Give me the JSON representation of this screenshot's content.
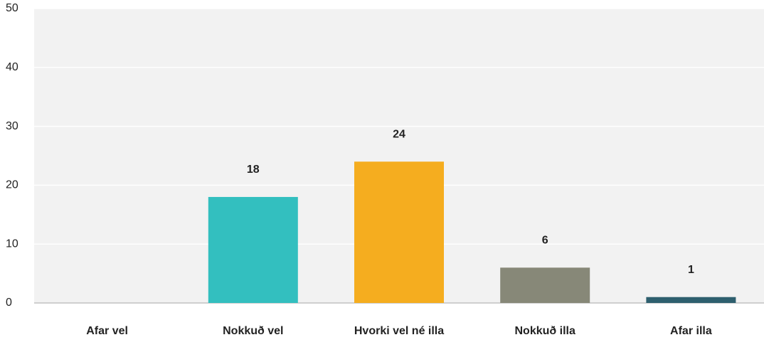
{
  "chart_data": {
    "type": "bar",
    "categories": [
      "Afar vel",
      "Nokkuð vel",
      "Hvorki vel né illa",
      "Nokkuð illa",
      "Afar illa"
    ],
    "values": [
      0,
      18,
      24,
      6,
      1
    ],
    "colors": [
      "#2b7bb9",
      "#33bfbf",
      "#f5ad1f",
      "#878878",
      "#2e5f6e"
    ],
    "ylim": [
      0,
      50
    ],
    "yticks": [
      0,
      10,
      20,
      30,
      40,
      50
    ],
    "grid": true
  }
}
